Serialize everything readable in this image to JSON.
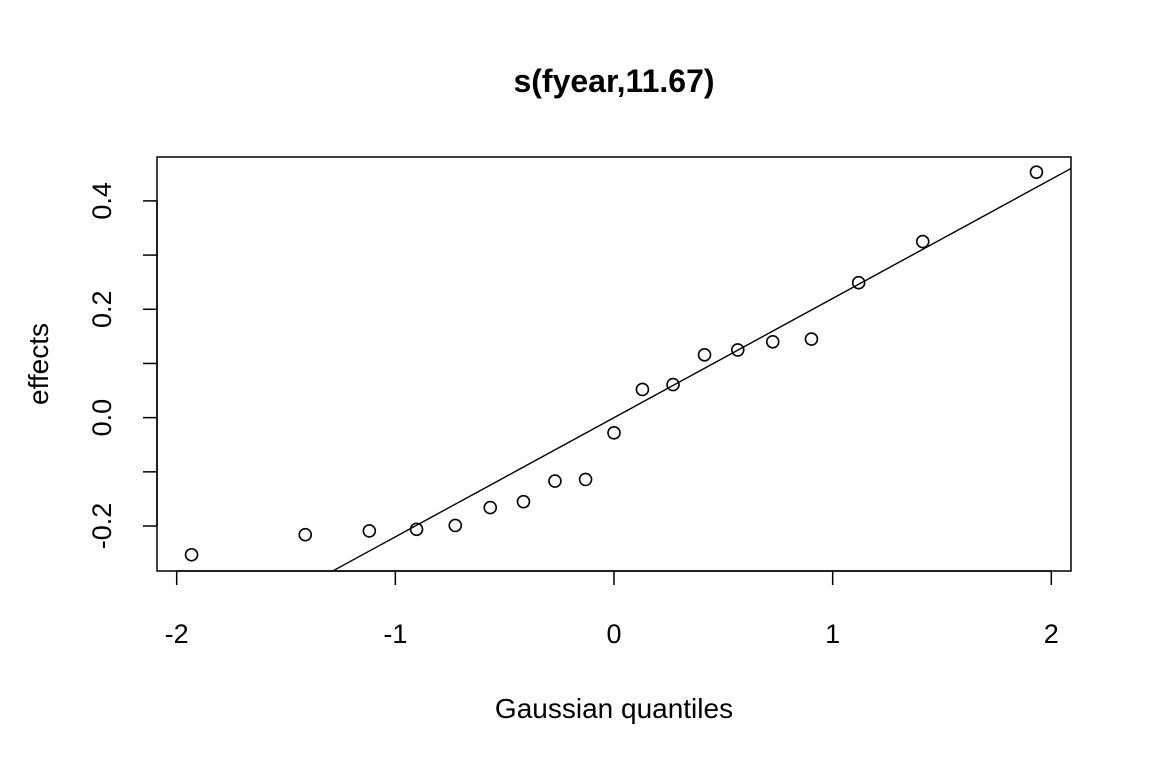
{
  "chart_data": {
    "type": "scatter",
    "title": "s(fyear,11.67)",
    "xlabel": "Gaussian quantiles",
    "ylabel": "effects",
    "xlim": [
      -2.09,
      2.09
    ],
    "ylim": [
      -0.283,
      0.481
    ],
    "xticks": [
      -2,
      -1,
      0,
      1,
      2
    ],
    "xtick_labels": [
      "-2",
      "-1",
      "0",
      "1",
      "2"
    ],
    "yticks": [
      -0.2,
      0.0,
      0.2,
      0.4
    ],
    "ytick_labels": [
      "-0.2",
      "0.0",
      "0.2",
      "0.4"
    ],
    "y_minor_ticks": [
      -0.1,
      0.1,
      0.3
    ],
    "grid": false,
    "x": [
      -1.932,
      -1.412,
      -1.119,
      -0.903,
      -0.726,
      -0.566,
      -0.414,
      -0.27,
      -0.13,
      0.0,
      0.13,
      0.27,
      0.414,
      0.566,
      0.726,
      0.903,
      1.119,
      1.412,
      1.932
    ],
    "y": [
      -0.253,
      -0.216,
      -0.209,
      -0.206,
      -0.199,
      -0.166,
      -0.155,
      -0.117,
      -0.114,
      -0.028,
      0.052,
      0.061,
      0.116,
      0.125,
      0.14,
      0.145,
      0.249,
      0.325,
      0.453
    ],
    "reference_line": {
      "intercept": 0.0,
      "slope": 0.22
    }
  }
}
